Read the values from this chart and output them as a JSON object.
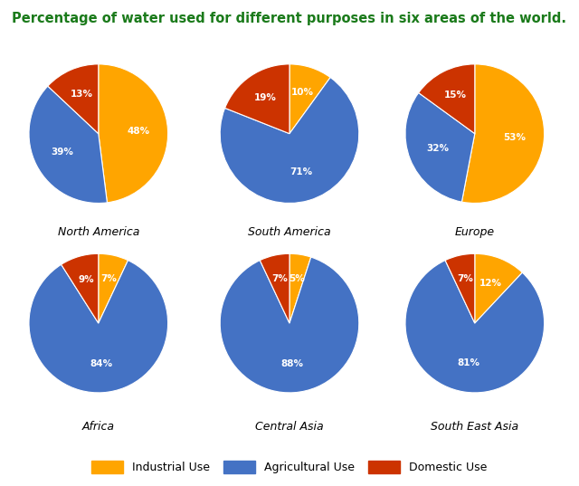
{
  "title": "Percentage of water used for different purposes in six areas of the world.",
  "title_color": "#1a7a1a",
  "title_fontsize": 10.5,
  "background_color": "#ffffff",
  "regions": [
    "North America",
    "South America",
    "Europe",
    "Africa",
    "Central Asia",
    "South East Asia"
  ],
  "categories": [
    "Industrial Use",
    "Agricultural Use",
    "Domestic Use"
  ],
  "colors": [
    "#FFA500",
    "#4472C4",
    "#CC3300"
  ],
  "data": {
    "North America": [
      48,
      39,
      13
    ],
    "South America": [
      10,
      71,
      19
    ],
    "Europe": [
      53,
      32,
      15
    ],
    "Africa": [
      7,
      84,
      9
    ],
    "Central Asia": [
      5,
      88,
      7
    ],
    "South East Asia": [
      12,
      81,
      7
    ]
  },
  "start_angles": {
    "North America": 90,
    "South America": 90,
    "Europe": 90,
    "Africa": 90,
    "Central Asia": 90,
    "South East Asia": 90
  },
  "label_color": "#ffffff",
  "label_fontsize": 7.5,
  "label_fontweight": "bold"
}
